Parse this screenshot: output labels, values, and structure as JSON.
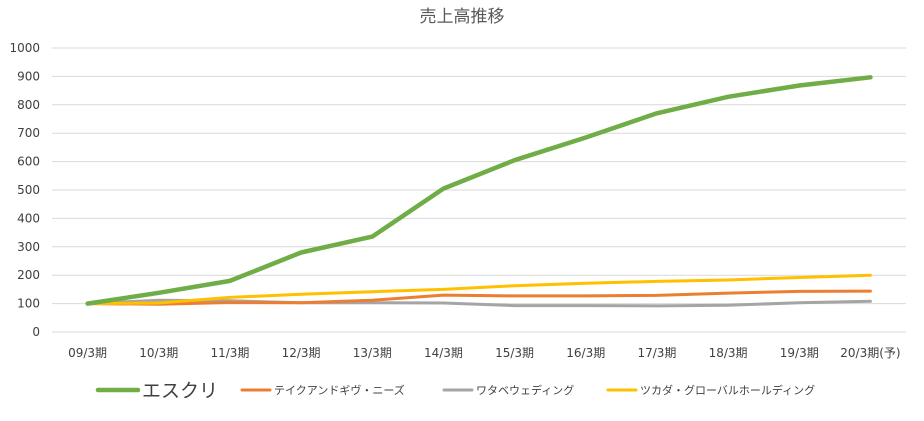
{
  "chart_data": {
    "type": "line",
    "title": "売上高推移",
    "xlabel": "",
    "ylabel": "",
    "ylim": [
      0,
      1000
    ],
    "yticks": [
      0,
      100,
      200,
      300,
      400,
      500,
      600,
      700,
      800,
      900,
      1000
    ],
    "grid": true,
    "legend_position": "bottom",
    "categories": [
      "09/3期",
      "10/3期",
      "11/3期",
      "12/3期",
      "13/3期",
      "14/3期",
      "15/3期",
      "16/3期",
      "17/3期",
      "18/3期",
      "19/3期",
      "20/3期(予)"
    ],
    "series": [
      {
        "name": "エスクリ",
        "color": "#70AD47",
        "values": [
          100,
          138,
          180,
          280,
          336,
          505,
          605,
          685,
          770,
          828,
          868,
          897
        ]
      },
      {
        "name": "テイクアンドギヴ・ニーズ",
        "color": "#ED7D31",
        "values": [
          100,
          98,
          104,
          103,
          112,
          130,
          127,
          127,
          129,
          137,
          143,
          144
        ]
      },
      {
        "name": "ワタベウェディング",
        "color": "#A5A5A5",
        "values": [
          100,
          112,
          110,
          103,
          103,
          102,
          93,
          93,
          92,
          94,
          103,
          108
        ]
      },
      {
        "name": "ツカダ・グローバルホールディング",
        "color": "#FFC000",
        "values": [
          100,
          102,
          122,
          133,
          142,
          150,
          163,
          172,
          178,
          183,
          192,
          200
        ]
      }
    ]
  }
}
